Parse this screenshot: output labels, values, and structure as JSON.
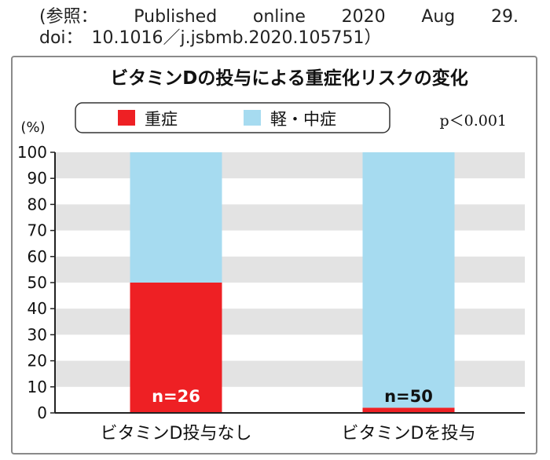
{
  "reference": {
    "line1": [
      "(参照：",
      "Published",
      "online",
      "2020",
      "Aug",
      "29."
    ],
    "line2": "doi：　10.1016／j.jsbmb.2020.105751）"
  },
  "chart_data": {
    "type": "bar",
    "stacked": true,
    "title": "ビタミンDの投与による重症化リスクの変化",
    "ylabel": "(%)",
    "ylim": [
      0,
      100
    ],
    "yticks": [
      0,
      10,
      20,
      30,
      40,
      50,
      60,
      70,
      80,
      90,
      100
    ],
    "grid": "alternating horizontal bands",
    "categories": [
      "ビタミンD投与なし",
      "ビタミンDを投与"
    ],
    "series": [
      {
        "name": "重症",
        "color": "#ee2024",
        "values": [
          50,
          2
        ]
      },
      {
        "name": "軽・中症",
        "color": "#a6dbf0",
        "values": [
          50,
          98
        ]
      }
    ],
    "bar_labels": [
      "n=26",
      "n=50"
    ],
    "annotation": "p＜0.001",
    "legend_position": "top"
  },
  "colors": {
    "band": "#e3e3e3",
    "axis": "#222222",
    "panel_border": "#8a8a8a"
  }
}
